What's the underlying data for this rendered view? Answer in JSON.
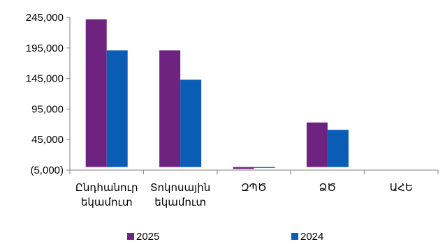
{
  "chart_data": {
    "type": "bar",
    "categories": [
      [
        "Ընդհանուր",
        "եկամուտ"
      ],
      [
        "Տոկոսային",
        "եկամուտ"
      ],
      [
        "ԶՊԾ"
      ],
      [
        "ՁԾ"
      ],
      [
        "ԱՀԵ"
      ]
    ],
    "series": [
      {
        "name": "2025",
        "color": "#6f2380",
        "values": [
          242000,
          191000,
          -3000,
          73000,
          0
        ]
      },
      {
        "name": "2024",
        "color": "#0a5cb5",
        "values": [
          191000,
          143000,
          -1500,
          61000,
          0
        ]
      }
    ],
    "yticks": [
      "245,000",
      "195,000",
      "145,000",
      "95,000",
      "45,000",
      "(5,000)"
    ],
    "ytick_values": [
      245000,
      195000,
      145000,
      95000,
      45000,
      -5000
    ],
    "ylim": [
      -5000,
      245000
    ],
    "grid": false,
    "legend_position": "bottom"
  }
}
